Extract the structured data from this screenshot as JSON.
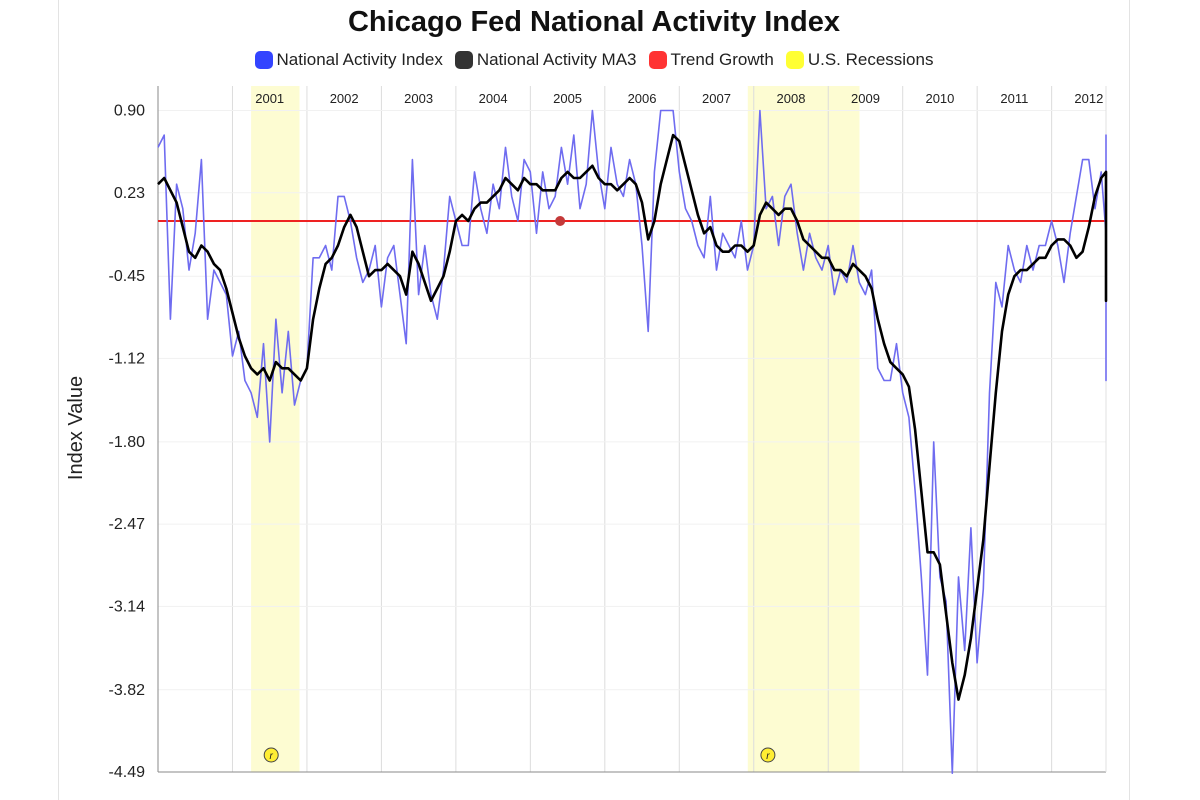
{
  "chart_data": {
    "type": "line",
    "title": "Chicago Fed National Activity Index",
    "xlabel": "",
    "ylabel": "Index Value",
    "ylim": [
      -4.49,
      1.1
    ],
    "y_ticks": [
      "0.90",
      "0.23",
      "-0.45",
      "-1.12",
      "-1.80",
      "-2.47",
      "-3.14",
      "-3.82",
      "-4.49"
    ],
    "x_start": 2000.0,
    "x_end": 2012.73,
    "year_labels": [
      "2001",
      "2002",
      "2003",
      "2004",
      "2005",
      "2006",
      "2007",
      "2008",
      "2009",
      "2010",
      "2011",
      "2012"
    ],
    "recessions": [
      [
        2001.25,
        2001.9
      ],
      [
        2007.92,
        2009.42
      ]
    ],
    "recession_markers": [
      "r",
      "r"
    ],
    "trend_growth": 0.0,
    "legend": [
      {
        "label": "National Activity Index",
        "color": "#3344ff"
      },
      {
        "label": "National Activity MA3",
        "color": "#333333"
      },
      {
        "label": "Trend Growth",
        "color": "#ff3333"
      },
      {
        "label": "U.S. Recessions",
        "color": "#ffff33"
      }
    ],
    "series": [
      {
        "name": "National Activity Index",
        "color": "#6f6cf0",
        "start": 2000.0,
        "step": 0.08333,
        "values": [
          0.6,
          0.7,
          -0.8,
          0.3,
          0.1,
          -0.4,
          -0.1,
          0.5,
          -0.8,
          -0.4,
          -0.5,
          -0.6,
          -1.1,
          -0.9,
          -1.3,
          -1.4,
          -1.6,
          -1.0,
          -1.8,
          -0.8,
          -1.4,
          -0.9,
          -1.5,
          -1.3,
          -1.2,
          -0.3,
          -0.3,
          -0.2,
          -0.4,
          0.2,
          0.2,
          0.0,
          -0.3,
          -0.5,
          -0.4,
          -0.2,
          -0.7,
          -0.3,
          -0.2,
          -0.6,
          -1.0,
          0.5,
          -0.6,
          -0.2,
          -0.6,
          -0.8,
          -0.4,
          0.2,
          0.0,
          -0.2,
          -0.2,
          0.4,
          0.1,
          -0.1,
          0.3,
          0.1,
          0.6,
          0.2,
          0.0,
          0.5,
          0.4,
          -0.1,
          0.4,
          0.1,
          0.2,
          0.6,
          0.3,
          0.7,
          0.1,
          0.3,
          0.9,
          0.4,
          0.1,
          0.6,
          0.3,
          0.2,
          0.5,
          0.3,
          -0.2,
          -0.9,
          0.4,
          0.9,
          0.9,
          0.9,
          0.4,
          0.1,
          0.0,
          -0.2,
          -0.3,
          0.2,
          -0.4,
          -0.1,
          -0.2,
          -0.3,
          0.0,
          -0.4,
          -0.2,
          0.9,
          0.1,
          0.2,
          -0.2,
          0.2,
          0.3,
          -0.1,
          -0.4,
          -0.1,
          -0.3,
          -0.4,
          -0.2,
          -0.6,
          -0.4,
          -0.5,
          -0.2,
          -0.5,
          -0.6,
          -0.4,
          -1.2,
          -1.3,
          -1.3,
          -1.0,
          -1.4,
          -1.6,
          -2.2,
          -2.9,
          -3.7,
          -1.8,
          -2.9,
          -3.1,
          -4.5,
          -2.9,
          -3.5,
          -2.5,
          -3.6,
          -3.0,
          -1.4,
          -0.5,
          -0.7,
          -0.2,
          -0.4,
          -0.5,
          -0.2,
          -0.4,
          -0.2,
          -0.2,
          0.0,
          -0.2,
          -0.5,
          -0.1,
          0.2,
          0.5,
          0.5,
          0.1,
          0.4,
          -0.1,
          -0.4,
          -0.3,
          -0.2,
          -0.2,
          -0.4,
          -0.1,
          0.0,
          0.3,
          0.0,
          -0.1,
          0.0,
          -0.1,
          -0.3,
          -0.4,
          -0.2,
          -0.3,
          0.0,
          0.4,
          -0.2,
          -0.6,
          0.0,
          0.3,
          -0.1,
          0.0,
          -0.2,
          0.0,
          0.2,
          0.0,
          0.4,
          0.7,
          0.4,
          0.0,
          0.6,
          0.2,
          -0.1,
          -0.2,
          -0.5,
          -0.3,
          0.0,
          -0.2,
          -0.1,
          -0.2,
          -0.7,
          -1.3,
          -0.1,
          0.0
        ]
      },
      {
        "name": "National Activity MA3",
        "color": "#000000",
        "start": 2000.0,
        "step": 0.08333,
        "values": [
          0.3,
          0.35,
          0.25,
          0.15,
          -0.05,
          -0.25,
          -0.3,
          -0.2,
          -0.25,
          -0.35,
          -0.4,
          -0.55,
          -0.75,
          -0.95,
          -1.1,
          -1.2,
          -1.25,
          -1.2,
          -1.3,
          -1.15,
          -1.2,
          -1.2,
          -1.25,
          -1.3,
          -1.2,
          -0.8,
          -0.55,
          -0.35,
          -0.3,
          -0.2,
          -0.05,
          0.05,
          -0.05,
          -0.25,
          -0.45,
          -0.4,
          -0.4,
          -0.35,
          -0.4,
          -0.45,
          -0.6,
          -0.25,
          -0.35,
          -0.5,
          -0.65,
          -0.55,
          -0.45,
          -0.25,
          0.0,
          0.05,
          0.0,
          0.1,
          0.15,
          0.15,
          0.2,
          0.25,
          0.35,
          0.3,
          0.25,
          0.35,
          0.3,
          0.3,
          0.25,
          0.25,
          0.25,
          0.35,
          0.4,
          0.35,
          0.35,
          0.4,
          0.45,
          0.35,
          0.3,
          0.3,
          0.25,
          0.3,
          0.35,
          0.3,
          0.15,
          -0.15,
          0.0,
          0.3,
          0.5,
          0.7,
          0.65,
          0.45,
          0.25,
          0.05,
          -0.1,
          -0.05,
          -0.2,
          -0.25,
          -0.25,
          -0.2,
          -0.2,
          -0.25,
          -0.2,
          0.05,
          0.15,
          0.1,
          0.05,
          0.1,
          0.1,
          0.0,
          -0.15,
          -0.2,
          -0.25,
          -0.3,
          -0.3,
          -0.4,
          -0.4,
          -0.45,
          -0.35,
          -0.4,
          -0.45,
          -0.55,
          -0.8,
          -1.0,
          -1.15,
          -1.2,
          -1.25,
          -1.35,
          -1.7,
          -2.2,
          -2.7,
          -2.7,
          -2.8,
          -3.2,
          -3.6,
          -3.9,
          -3.7,
          -3.4,
          -3.0,
          -2.6,
          -2.0,
          -1.4,
          -0.9,
          -0.6,
          -0.45,
          -0.4,
          -0.4,
          -0.35,
          -0.3,
          -0.3,
          -0.2,
          -0.15,
          -0.15,
          -0.2,
          -0.3,
          -0.25,
          -0.05,
          0.2,
          0.35,
          0.4,
          0.35,
          0.2,
          0.0,
          -0.2,
          -0.3,
          -0.3,
          -0.25,
          -0.2,
          -0.15,
          0.0,
          0.1,
          0.1,
          0.05,
          0.0,
          -0.1,
          -0.25,
          -0.35,
          -0.3,
          -0.2,
          -0.05,
          -0.1,
          -0.35,
          -0.4,
          -0.15,
          -0.1,
          -0.15,
          -0.1,
          -0.05,
          0.0,
          0.1,
          0.3,
          0.4,
          0.35,
          0.3,
          0.2,
          -0.05,
          -0.15,
          -0.2,
          -0.25,
          -0.3,
          -0.3,
          -0.35,
          -0.5,
          -0.65,
          -0.55
        ]
      }
    ]
  }
}
